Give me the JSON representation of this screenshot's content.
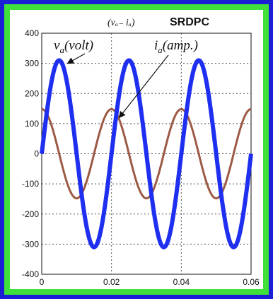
{
  "colors": {
    "frame_outer": "#1a1fd6",
    "frame_inner": "#3fe03a",
    "voltage": "#1f2ff0",
    "current": "#9c5a44",
    "grid": "#555555"
  },
  "chart_data": {
    "type": "line",
    "title_math": "(vₐ₋ iₐ)",
    "title_text": "SRDPC",
    "xlim": [
      0,
      0.06
    ],
    "ylim": [
      -400,
      400
    ],
    "xticks": [
      0,
      0.02,
      0.04,
      0.06
    ],
    "xtick_labels": [
      "0",
      "0.02",
      "0.04",
      "0.06"
    ],
    "yticks": [
      -400,
      -300,
      -200,
      -100,
      0,
      100,
      200,
      300,
      400
    ],
    "ytick_labels": [
      "-400",
      "-300",
      "-200",
      "-100",
      "0",
      "100",
      "200",
      "300",
      "400"
    ],
    "grid": true,
    "series": [
      {
        "key": "va",
        "amplitude": 310,
        "frequency_hz": 50,
        "phase_deg": 0,
        "x_range": [
          0,
          0.06
        ]
      },
      {
        "key": "ia",
        "amplitude": 148,
        "frequency_hz": 50,
        "phase_deg": 90,
        "x_range": [
          0,
          0.06
        ]
      }
    ],
    "annotations": [
      {
        "label_main": "v",
        "label_sub": "a",
        "label_rest": "(volt)",
        "points_to": [
          0.0074,
          300
        ]
      },
      {
        "label_main": "i",
        "label_sub": "a",
        "label_rest": "(amp.)",
        "points_to": [
          0.0222,
          120
        ]
      }
    ]
  }
}
